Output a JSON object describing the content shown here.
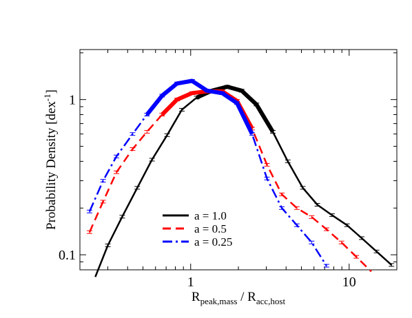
{
  "chart_data": {
    "type": "line",
    "xlabel_main": "R",
    "xlabel_sub1": "peak,mass",
    "xlabel_mid": " / R",
    "xlabel_sub2": "acc,host",
    "ylabel_main": "Probability Density [dex",
    "ylabel_sup": "-1",
    "ylabel_end": "]",
    "x_scale": "log",
    "y_scale": "log",
    "xlim": [
      0.2,
      20
    ],
    "ylim": [
      0.08,
      2.1
    ],
    "x_ticks": [
      1,
      10
    ],
    "x_tick_labels": [
      "1",
      "10"
    ],
    "y_ticks": [
      0.1,
      1
    ],
    "y_tick_labels": [
      "0.1",
      "1"
    ],
    "grid": false,
    "legend_position": "lower-left",
    "series": [
      {
        "name": "a = 1.0",
        "color": "#000000",
        "dash": "solid",
        "x": [
          0.25,
          0.3,
          0.37,
          0.46,
          0.57,
          0.71,
          0.88,
          1.09,
          1.36,
          1.7,
          2.1,
          2.6,
          3.3,
          4.1,
          5.1,
          6.3,
          7.8,
          9.7,
          12.0,
          14.9,
          18.5
        ],
        "y": [
          0.072,
          0.115,
          0.176,
          0.27,
          0.41,
          0.59,
          0.86,
          1.03,
          1.14,
          1.21,
          1.14,
          0.93,
          0.62,
          0.4,
          0.27,
          0.21,
          0.18,
          0.155,
          0.128,
          0.105,
          0.086
        ],
        "emphasized_range": [
          1.09,
          3.3
        ]
      },
      {
        "name": "a = 0.5",
        "color": "#ff0000",
        "dash": "dashed",
        "x": [
          0.23,
          0.28,
          0.34,
          0.43,
          0.53,
          0.66,
          0.82,
          1.02,
          1.27,
          1.58,
          1.96,
          2.44,
          3.03,
          3.76,
          4.68,
          5.8,
          7.2,
          8.95,
          11.1,
          13.8
        ],
        "y": [
          0.14,
          0.22,
          0.34,
          0.48,
          0.62,
          0.8,
          1.0,
          1.1,
          1.13,
          1.13,
          0.98,
          0.65,
          0.38,
          0.245,
          0.2,
          0.175,
          0.146,
          0.12,
          0.097,
          0.078
        ],
        "emphasized_range": [
          0.66,
          2.44
        ]
      },
      {
        "name": "a = 0.25",
        "color": "#0000ff",
        "dash": "dashdot",
        "x": [
          0.23,
          0.28,
          0.34,
          0.43,
          0.53,
          0.66,
          0.82,
          1.02,
          1.27,
          1.58,
          1.96,
          2.44,
          3.03,
          3.76,
          4.68,
          5.8,
          7.2
        ],
        "y": [
          0.19,
          0.3,
          0.43,
          0.6,
          0.8,
          1.06,
          1.27,
          1.32,
          1.14,
          1.1,
          0.95,
          0.6,
          0.31,
          0.2,
          0.155,
          0.12,
          0.085
        ],
        "emphasized_range": [
          0.53,
          2.44
        ]
      }
    ]
  }
}
